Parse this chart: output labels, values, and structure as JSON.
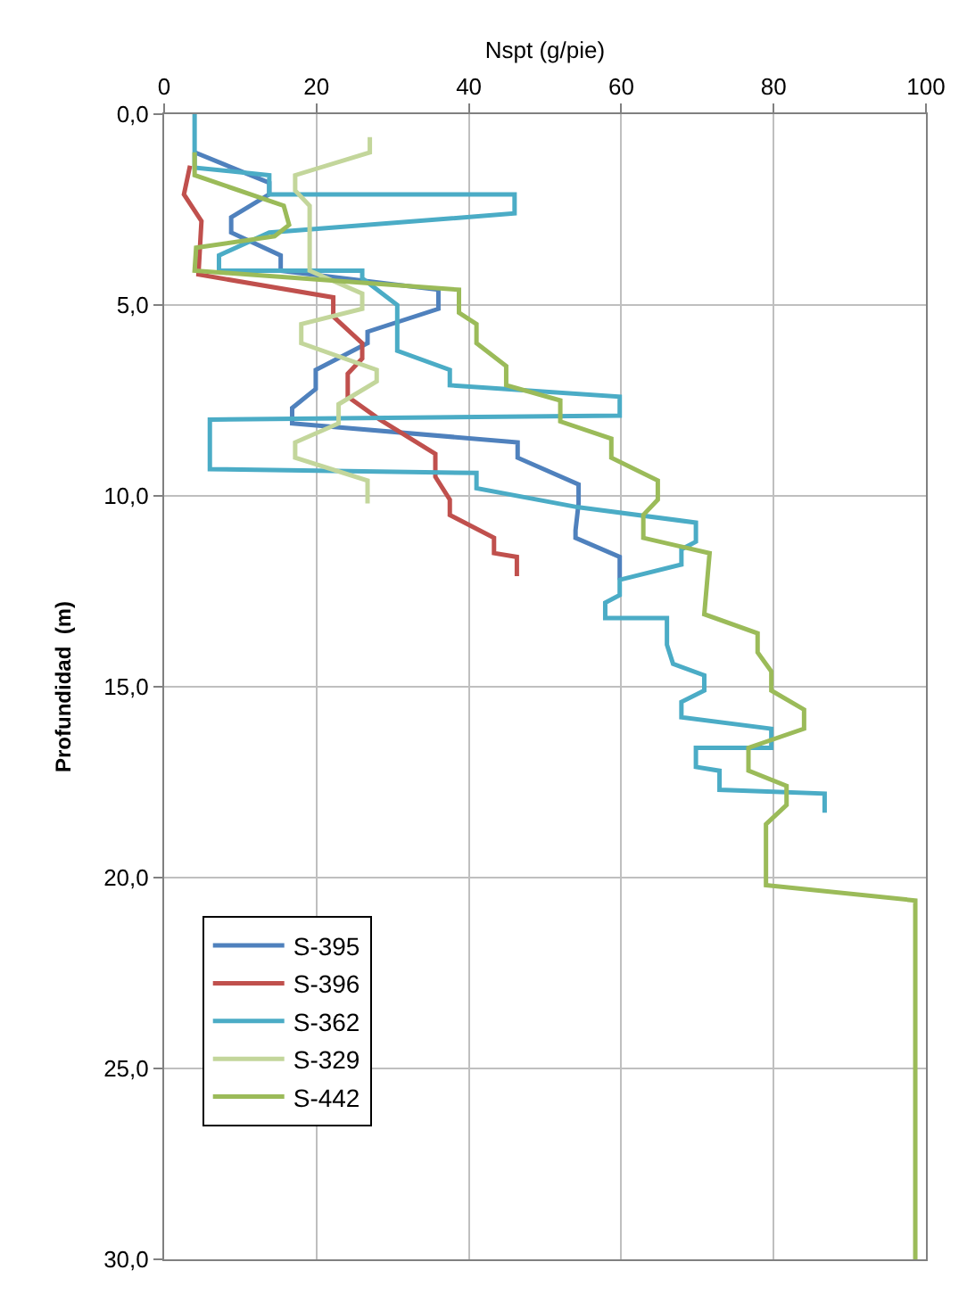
{
  "chart_data": {
    "type": "line",
    "xlabel": "Nspt (g/pie)",
    "ylabel": "Profundidad  (m)",
    "xlim": [
      0,
      100
    ],
    "xticks": [
      0,
      20,
      40,
      60,
      80,
      100
    ],
    "ylim": [
      30,
      0
    ],
    "yticks": [
      {
        "value": 0,
        "label": "0,0"
      },
      {
        "value": 5,
        "label": "5,0"
      },
      {
        "value": 10,
        "label": "10,0"
      },
      {
        "value": 15,
        "label": "15,0"
      },
      {
        "value": 20,
        "label": "20,0"
      },
      {
        "value": 25,
        "label": "25,0"
      },
      {
        "value": 30,
        "label": "30,0"
      }
    ],
    "grid": true,
    "legend": "bottom left",
    "marker": "none",
    "line_style": "solid",
    "series": [
      {
        "name": "S-395",
        "color": "#4f81bd",
        "x": [
          4,
          13.8,
          13.8,
          8.8,
          8.8,
          15.3,
          15.3,
          36,
          36,
          26.7,
          26.7,
          19.9,
          19.9,
          16.8,
          16.8,
          46.4,
          46.4,
          54.4,
          54.4,
          54,
          54,
          59.8,
          59.8
        ],
        "values": [
          1.0,
          1.8,
          2.1,
          2.7,
          3.1,
          3.7,
          4.1,
          4.6,
          5.1,
          5.7,
          6.0,
          6.7,
          7.2,
          7.7,
          8.1,
          8.6,
          9.0,
          9.7,
          10.2,
          10.9,
          11.1,
          11.6,
          12.2
        ]
      },
      {
        "name": "S-396",
        "color": "#c0504d",
        "x": [
          3.4,
          2.6,
          4.9,
          4.5,
          22.2,
          22.2,
          26,
          26,
          24.1,
          24.1,
          28.3,
          35.6,
          35.6,
          37.5,
          37.5,
          43.3,
          43.3,
          46.3,
          46.3
        ],
        "values": [
          1.35,
          2.1,
          2.8,
          4.2,
          4.8,
          5.3,
          6.0,
          6.4,
          6.8,
          7.4,
          8.0,
          8.9,
          9.5,
          10.1,
          10.5,
          11.1,
          11.5,
          11.6,
          12.1
        ]
      },
      {
        "name": "S-362",
        "color": "#4bacc6",
        "x": [
          4,
          4,
          13.8,
          13.8,
          46,
          46,
          13.8,
          7.2,
          7.2,
          26,
          26,
          30.6,
          30.6,
          37.5,
          37.5,
          59.8,
          59.8,
          6,
          6,
          41,
          41,
          54.4,
          69.8,
          69.8,
          67.9,
          67.9,
          59.8,
          59.8,
          57.9,
          57.9,
          66,
          66,
          66.8,
          70.9,
          70.9,
          67.9,
          67.9,
          79.7,
          79.7,
          69.8,
          69.8,
          72.9,
          72.9,
          86.7,
          86.7
        ],
        "values": [
          0,
          1.4,
          1.6,
          2.1,
          2.1,
          2.6,
          3.1,
          3.7,
          4.1,
          4.1,
          4.3,
          5.0,
          6.2,
          6.7,
          7.1,
          7.4,
          7.9,
          8.0,
          9.3,
          9.4,
          9.8,
          10.3,
          10.7,
          11.2,
          11.4,
          11.8,
          12.2,
          12.6,
          12.8,
          13.2,
          13.2,
          13.9,
          14.4,
          14.7,
          15.1,
          15.4,
          15.8,
          16.1,
          16.6,
          16.6,
          17.1,
          17.2,
          17.7,
          17.8,
          18.3
        ]
      },
      {
        "name": "S-329",
        "color": "#c3d69b",
        "x": [
          27,
          27,
          17.2,
          17.2,
          19.1,
          19.1,
          26,
          26,
          18,
          18,
          27.9,
          27.9,
          22.9,
          22.9,
          17.2,
          17.2,
          26.7,
          26.7
        ],
        "values": [
          0.6,
          1.0,
          1.6,
          2.0,
          2.4,
          4.1,
          4.7,
          5.1,
          5.5,
          6.0,
          6.7,
          7.0,
          7.6,
          8.1,
          8.6,
          9.0,
          9.6,
          10.2
        ]
      },
      {
        "name": "S-442",
        "color": "#9bbb59",
        "x": [
          4,
          4,
          15.7,
          16.4,
          14.5,
          4.2,
          4,
          38.7,
          38.7,
          41,
          41,
          44.9,
          44.9,
          52,
          52,
          58.7,
          58.7,
          64.8,
          64.8,
          62.9,
          62.9,
          71.6,
          70.9,
          77.9,
          77.9,
          79.7,
          79.7,
          84,
          84,
          76.7,
          76.7,
          81.7,
          81.7,
          79,
          79,
          98.6,
          98.6
        ],
        "values": [
          1.0,
          1.6,
          2.4,
          2.9,
          3.2,
          3.5,
          4.1,
          4.6,
          5.2,
          5.5,
          6.0,
          6.6,
          7.1,
          7.5,
          8.05,
          8.5,
          9.0,
          9.6,
          10.1,
          10.5,
          11.1,
          11.5,
          13.1,
          13.6,
          14.1,
          14.6,
          15.1,
          15.6,
          16.1,
          16.6,
          17.2,
          17.6,
          18.1,
          18.6,
          20.2,
          20.6,
          30
        ]
      }
    ]
  }
}
